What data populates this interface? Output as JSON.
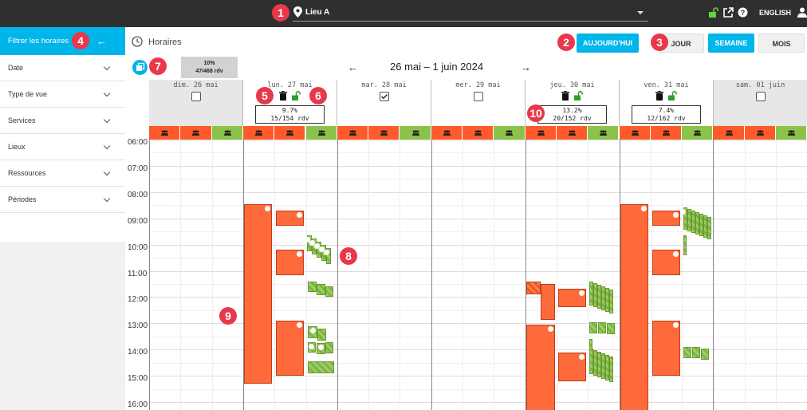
{
  "topbar": {
    "location": "Lieu A",
    "language": "ENGLISH",
    "icons": [
      "lock-open-icon",
      "external-link-icon",
      "help-icon",
      "user-icon"
    ]
  },
  "badges": [
    "1",
    "2",
    "3",
    "4",
    "5",
    "6",
    "7",
    "8",
    "9",
    "10"
  ],
  "sidebar": {
    "title": "Filtrer les horaires",
    "items": [
      {
        "label": "Date"
      },
      {
        "label": "Type de vue"
      },
      {
        "label": "Services"
      },
      {
        "label": "Lieux"
      },
      {
        "label": "Ressources"
      },
      {
        "label": "Périodes"
      }
    ]
  },
  "header": {
    "page_title": "Horaires",
    "today": "AUJOURD'HUI",
    "views": {
      "day": "JOUR",
      "week": "SEMAINE",
      "month": "MOIS"
    },
    "range": "26 mai – 1 juin 2024",
    "summary": {
      "pct": "10%",
      "count": "47/468 rdv"
    }
  },
  "days": [
    {
      "name": "dim. 26 mai",
      "off": true,
      "checkbox": false,
      "stat": null
    },
    {
      "name": "lun. 27 mai",
      "off": false,
      "checkbox": false,
      "stat": {
        "pct": "9.7%",
        "count": "15/154 rdv"
      }
    },
    {
      "name": "mar. 28 mai",
      "off": false,
      "checkbox": true,
      "stat": null
    },
    {
      "name": "mer. 29 mai",
      "off": false,
      "checkbox": false,
      "stat": null
    },
    {
      "name": "jeu. 30 mai",
      "off": false,
      "checkbox": false,
      "stat": {
        "pct": "13.2%",
        "count": "20/152 rdv"
      }
    },
    {
      "name": "ven. 31 mai",
      "off": false,
      "checkbox": false,
      "stat": {
        "pct": "7.4%",
        "count": "12/162 rdv"
      }
    },
    {
      "name": "sam. 01 juin",
      "off": true,
      "checkbox": false,
      "stat": null
    }
  ],
  "resources": [
    "o",
    "o",
    "g",
    "o",
    "o",
    "g",
    "o",
    "o",
    "g",
    "o",
    "o",
    "g",
    "o",
    "o",
    "g",
    "o",
    "o",
    "g",
    "o",
    "o",
    "g"
  ],
  "hours": [
    "06:00",
    "07:00",
    "08:00",
    "09:00",
    "10:00",
    "11:00",
    "12:00",
    "13:00",
    "14:00",
    "15:00",
    "16:00"
  ],
  "colors": {
    "accent": "#00b5ea",
    "orange": "#ff5a2b",
    "green": "#8bc34a",
    "badge": "#e8384a",
    "topbar": "#2f2f2f"
  }
}
